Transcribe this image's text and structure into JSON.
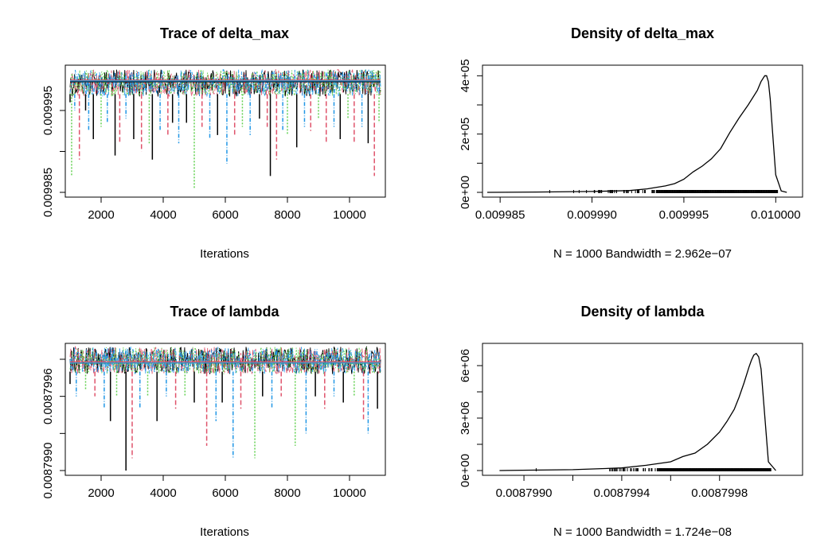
{
  "chart_data": [
    {
      "type": "line",
      "panel": "trace",
      "title": "Trace of delta_max",
      "xlabel": "Iterations",
      "ylabel": "",
      "xlim": [
        1000,
        11000
      ],
      "ylim": [
        0.009985,
        0.00999995
      ],
      "x_ticks": [
        2000,
        4000,
        6000,
        8000,
        10000
      ],
      "y_ticks": [
        0.009985,
        0.00999,
        0.009995
      ],
      "y_tick_labels": [
        "0.009985",
        "",
        "0.009995"
      ],
      "series_count": 4,
      "series_colors": [
        "#000000",
        "#DF536B",
        "#61D04F",
        "#2297E6"
      ],
      "band": {
        "upper": 0.01,
        "lower": 0.009997
      },
      "mean_levels": [
        0.0099985,
        0.0099987,
        0.0099986,
        0.0099986
      ],
      "spikes": [
        {
          "x": 1000,
          "y": 0.009996,
          "s": 0
        },
        {
          "x": 1050,
          "y": 0.009987,
          "s": 2
        },
        {
          "x": 1150,
          "y": 0.009995,
          "s": 3
        },
        {
          "x": 1300,
          "y": 0.009989,
          "s": 1
        },
        {
          "x": 1500,
          "y": 0.009995,
          "s": 0
        },
        {
          "x": 1600,
          "y": 0.0099925,
          "s": 3
        },
        {
          "x": 1750,
          "y": 0.0099915,
          "s": 0
        },
        {
          "x": 2000,
          "y": 0.009993,
          "s": 2
        },
        {
          "x": 2200,
          "y": 0.0099935,
          "s": 3
        },
        {
          "x": 2450,
          "y": 0.0099895,
          "s": 0
        },
        {
          "x": 2600,
          "y": 0.009991,
          "s": 1
        },
        {
          "x": 2800,
          "y": 0.009994,
          "s": 3
        },
        {
          "x": 3050,
          "y": 0.0099915,
          "s": 0
        },
        {
          "x": 3300,
          "y": 0.00999,
          "s": 1
        },
        {
          "x": 3550,
          "y": 0.009991,
          "s": 2
        },
        {
          "x": 3650,
          "y": 0.009989,
          "s": 0
        },
        {
          "x": 3900,
          "y": 0.0099925,
          "s": 3
        },
        {
          "x": 4150,
          "y": 0.009992,
          "s": 1
        },
        {
          "x": 4300,
          "y": 0.0099935,
          "s": 0
        },
        {
          "x": 4500,
          "y": 0.009991,
          "s": 3
        },
        {
          "x": 4750,
          "y": 0.0099935,
          "s": 0
        },
        {
          "x": 5000,
          "y": 0.0099855,
          "s": 2
        },
        {
          "x": 5250,
          "y": 0.009993,
          "s": 1
        },
        {
          "x": 5500,
          "y": 0.0099915,
          "s": 3
        },
        {
          "x": 5750,
          "y": 0.009992,
          "s": 0
        },
        {
          "x": 6050,
          "y": 0.0099885,
          "s": 3
        },
        {
          "x": 6300,
          "y": 0.009992,
          "s": 1
        },
        {
          "x": 6550,
          "y": 0.009993,
          "s": 2
        },
        {
          "x": 6800,
          "y": 0.009992,
          "s": 3
        },
        {
          "x": 7100,
          "y": 0.009994,
          "s": 0
        },
        {
          "x": 7350,
          "y": 0.009993,
          "s": 1
        },
        {
          "x": 7450,
          "y": 0.009987,
          "s": 0
        },
        {
          "x": 7650,
          "y": 0.009989,
          "s": 1
        },
        {
          "x": 7850,
          "y": 0.0099925,
          "s": 3
        },
        {
          "x": 8000,
          "y": 0.009992,
          "s": 2
        },
        {
          "x": 8300,
          "y": 0.0099905,
          "s": 0
        },
        {
          "x": 8550,
          "y": 0.009993,
          "s": 3
        },
        {
          "x": 8750,
          "y": 0.0099925,
          "s": 1
        },
        {
          "x": 9000,
          "y": 0.009994,
          "s": 2
        },
        {
          "x": 9250,
          "y": 0.009991,
          "s": 1
        },
        {
          "x": 9500,
          "y": 0.009993,
          "s": 3
        },
        {
          "x": 9700,
          "y": 0.0099915,
          "s": 0
        },
        {
          "x": 9950,
          "y": 0.009994,
          "s": 2
        },
        {
          "x": 10150,
          "y": 0.009991,
          "s": 1
        },
        {
          "x": 10400,
          "y": 0.009993,
          "s": 3
        },
        {
          "x": 10600,
          "y": 0.009991,
          "s": 0
        },
        {
          "x": 10800,
          "y": 0.009987,
          "s": 1
        },
        {
          "x": 10950,
          "y": 0.0099935,
          "s": 2
        }
      ]
    },
    {
      "type": "line",
      "panel": "density",
      "title": "Density of delta_max",
      "xlabel": "N = 1000   Bandwidth = 2.962e−07",
      "ylabel": "",
      "xlim": [
        0.0099843,
        0.0100012
      ],
      "ylim": [
        0,
        420000
      ],
      "x_ticks": [
        0.009985,
        0.00999,
        0.009995,
        0.01
      ],
      "x_tick_labels": [
        "0.009985",
        "0.009990",
        "0.009995",
        "0.010000"
      ],
      "y_ticks": [
        0,
        100000,
        200000,
        300000,
        400000
      ],
      "y_tick_labels": [
        "0e+00",
        "",
        "2e+05",
        "",
        "4e+05"
      ],
      "curve": {
        "x": [
          0.0099843,
          0.009987,
          0.00999,
          0.009992,
          0.009993,
          0.009994,
          0.0099945,
          0.009995,
          0.0099955,
          0.009996,
          0.0099965,
          0.009997,
          0.0099975,
          0.009998,
          0.0099985,
          0.009999,
          0.0099992,
          0.0099994,
          0.0099995,
          0.0099996,
          0.0099997,
          0.0099998,
          0.01,
          0.0100003,
          0.0100006
        ],
        "y": [
          0,
          1000,
          3000,
          6000,
          12000,
          22000,
          30000,
          45000,
          70000,
          90000,
          115000,
          150000,
          205000,
          255000,
          300000,
          350000,
          380000,
          400000,
          400000,
          380000,
          320000,
          230000,
          60000,
          5000,
          0
        ]
      },
      "rug": {
        "start": 0.00999,
        "end": 0.0100001,
        "dense_from": 0.0099935,
        "isolated": [
          0.0099877,
          0.009989,
          0.0099893,
          0.0099897
        ]
      }
    },
    {
      "type": "line",
      "panel": "trace",
      "title": "Trace of lambda",
      "xlabel": "Iterations",
      "ylabel": "",
      "xlim": [
        1000,
        11000
      ],
      "ylim": [
        0.008799,
        0.00879999
      ],
      "x_ticks": [
        2000,
        4000,
        6000,
        8000,
        10000
      ],
      "y_ticks": [
        0.008799,
        0.0087993,
        0.0087996,
        0.0087999
      ],
      "y_tick_labels": [
        "0.0087990",
        "",
        "0.0087996",
        ""
      ],
      "series_count": 4,
      "series_colors": [
        "#000000",
        "#DF536B",
        "#61D04F",
        "#2297E6"
      ],
      "band": {
        "upper": 0.0088,
        "lower": 0.0087998
      },
      "mean_levels": [
        0.00879987,
        0.00879988,
        0.00879987,
        0.00879987
      ],
      "spikes": [
        {
          "x": 1000,
          "y": 0.0087997,
          "s": 0
        },
        {
          "x": 1200,
          "y": 0.0087996,
          "s": 3
        },
        {
          "x": 1500,
          "y": 0.00879965,
          "s": 2
        },
        {
          "x": 1800,
          "y": 0.0087996,
          "s": 1
        },
        {
          "x": 2100,
          "y": 0.0087995,
          "s": 3
        },
        {
          "x": 2300,
          "y": 0.0087994,
          "s": 0
        },
        {
          "x": 2500,
          "y": 0.0087996,
          "s": 2
        },
        {
          "x": 2800,
          "y": 0.008799,
          "s": 0
        },
        {
          "x": 3000,
          "y": 0.0087991,
          "s": 1
        },
        {
          "x": 3250,
          "y": 0.0087995,
          "s": 3
        },
        {
          "x": 3500,
          "y": 0.0087996,
          "s": 2
        },
        {
          "x": 3800,
          "y": 0.0087994,
          "s": 0
        },
        {
          "x": 4100,
          "y": 0.0087996,
          "s": 3
        },
        {
          "x": 4400,
          "y": 0.0087995,
          "s": 1
        },
        {
          "x": 4700,
          "y": 0.0087996,
          "s": 2
        },
        {
          "x": 5000,
          "y": 0.00879955,
          "s": 0
        },
        {
          "x": 5400,
          "y": 0.0087992,
          "s": 1
        },
        {
          "x": 5700,
          "y": 0.0087994,
          "s": 3
        },
        {
          "x": 5900,
          "y": 0.00879955,
          "s": 0
        },
        {
          "x": 6250,
          "y": 0.0087991,
          "s": 3
        },
        {
          "x": 6500,
          "y": 0.0087995,
          "s": 1
        },
        {
          "x": 6950,
          "y": 0.0087991,
          "s": 2
        },
        {
          "x": 7200,
          "y": 0.0087996,
          "s": 0
        },
        {
          "x": 7500,
          "y": 0.0087995,
          "s": 3
        },
        {
          "x": 7800,
          "y": 0.0087996,
          "s": 1
        },
        {
          "x": 8250,
          "y": 0.0087992,
          "s": 2
        },
        {
          "x": 8600,
          "y": 0.0087993,
          "s": 3
        },
        {
          "x": 8900,
          "y": 0.0087996,
          "s": 0
        },
        {
          "x": 9200,
          "y": 0.0087995,
          "s": 1
        },
        {
          "x": 9500,
          "y": 0.0087996,
          "s": 3
        },
        {
          "x": 9800,
          "y": 0.00879955,
          "s": 0
        },
        {
          "x": 10150,
          "y": 0.0087996,
          "s": 2
        },
        {
          "x": 10450,
          "y": 0.0087994,
          "s": 1
        },
        {
          "x": 10600,
          "y": 0.0087993,
          "s": 3
        },
        {
          "x": 10900,
          "y": 0.0087995,
          "s": 0
        }
      ]
    },
    {
      "type": "line",
      "panel": "density",
      "title": "Density of lambda",
      "xlabel": "N = 1000   Bandwidth = 1.724e−08",
      "ylabel": "",
      "xlim": [
        0.00879885,
        0.00880012
      ],
      "ylim": [
        0,
        7000000
      ],
      "x_ticks": [
        0.008799,
        0.0087992,
        0.0087994,
        0.0087996,
        0.0087998
      ],
      "x_tick_labels": [
        "0.0087990",
        "",
        "0.0087994",
        "",
        "0.0087998"
      ],
      "y_ticks": [
        0,
        1500000,
        3000000,
        4500000,
        6000000
      ],
      "y_tick_labels": [
        "0e+00",
        "",
        "3e+06",
        "",
        "6e+06"
      ],
      "curve": {
        "x": [
          0.0087989,
          0.0087992,
          0.0087994,
          0.0087995,
          0.0087996,
          0.00879965,
          0.0087997,
          0.00879975,
          0.0087998,
          0.00879983,
          0.00879986,
          0.00879988,
          0.0087999,
          0.00879992,
          0.00879993,
          0.00879994,
          0.00879995,
          0.00879996,
          0.00879997,
          0.00879998,
          0.0088,
          0.00880003
        ],
        "y": [
          0,
          50000,
          150000,
          300000,
          500000,
          800000,
          1000000,
          1500000,
          2200000,
          2800000,
          3500000,
          4200000,
          5000000,
          5900000,
          6300000,
          6600000,
          6700000,
          6500000,
          5800000,
          4000000,
          500000,
          0
        ]
      },
      "rug": {
        "start": 0.00879935,
        "end": 0.00880001,
        "dense_from": 0.00879955,
        "isolated": [
          0.00879905
        ]
      }
    }
  ]
}
